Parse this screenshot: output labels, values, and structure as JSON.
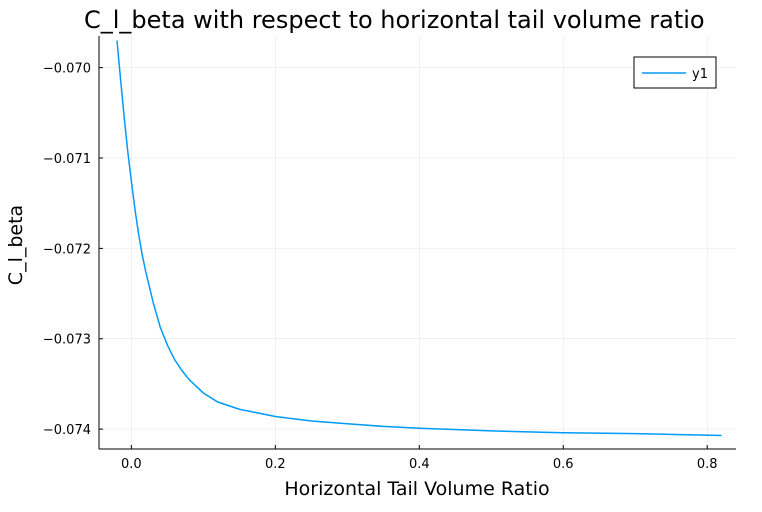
{
  "chart_data": {
    "type": "line",
    "title": "C_l_beta with respect to horizontal tail volume ratio",
    "xlabel": "Horizontal Tail Volume Ratio",
    "ylabel": "C_l_beta",
    "xlim": [
      -0.045,
      0.84
    ],
    "ylim": [
      -0.07422,
      -0.06965
    ],
    "xticks": [
      0.0,
      0.2,
      0.4,
      0.6,
      0.8
    ],
    "xtick_labels": [
      "0.0",
      "0.2",
      "0.4",
      "0.6",
      "0.8"
    ],
    "yticks": [
      -0.07,
      -0.071,
      -0.072,
      -0.073,
      -0.074
    ],
    "ytick_labels": [
      "−0.070",
      "−0.071",
      "−0.072",
      "−0.073",
      "−0.074"
    ],
    "grid": true,
    "legend_position": "top-right",
    "series": [
      {
        "name": "y1",
        "color": "#009AFA",
        "x": [
          -0.02,
          -0.015,
          -0.01,
          -0.005,
          0.0,
          0.005,
          0.01,
          0.015,
          0.02,
          0.03,
          0.04,
          0.05,
          0.06,
          0.07,
          0.08,
          0.1,
          0.12,
          0.15,
          0.2,
          0.25,
          0.3,
          0.35,
          0.4,
          0.5,
          0.6,
          0.7,
          0.82
        ],
        "y": [
          -0.0697,
          -0.07013,
          -0.07055,
          -0.07093,
          -0.07126,
          -0.07157,
          -0.07184,
          -0.07207,
          -0.07226,
          -0.07259,
          -0.07287,
          -0.07307,
          -0.07323,
          -0.07335,
          -0.07345,
          -0.0736,
          -0.0737,
          -0.07378,
          -0.07386,
          -0.07391,
          -0.07394,
          -0.07397,
          -0.07399,
          -0.07402,
          -0.07404,
          -0.07405,
          -0.07407
        ]
      }
    ]
  }
}
